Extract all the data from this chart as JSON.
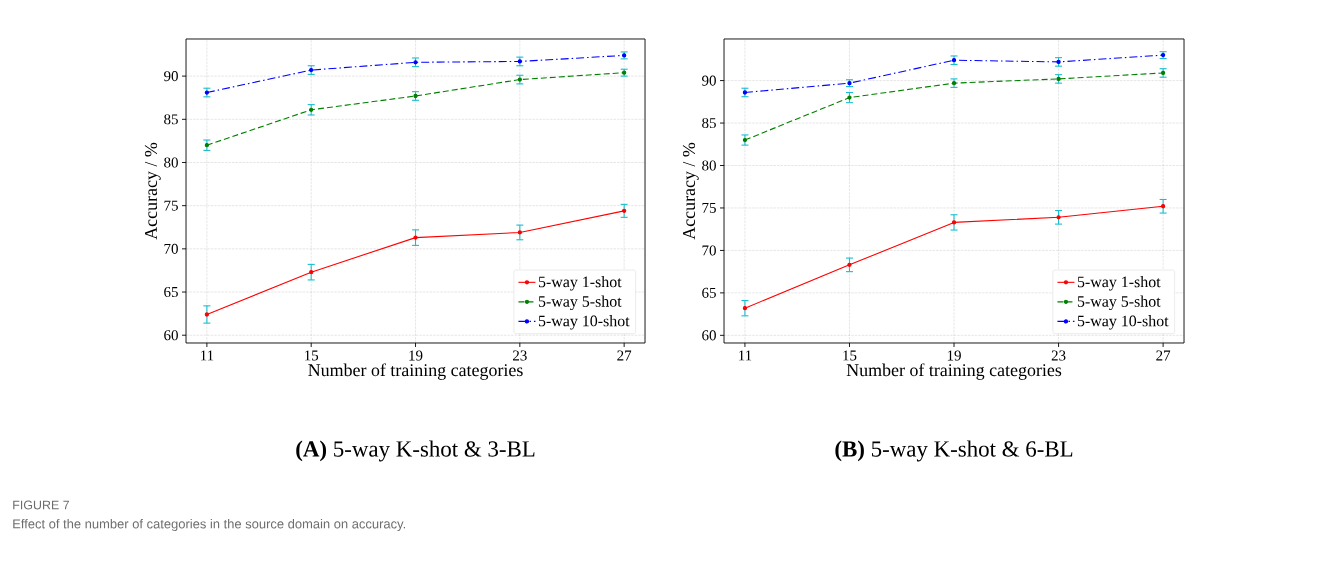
{
  "chart_data": [
    {
      "type": "line",
      "title": "**(A)** 5-way K-shot & 3-BL",
      "xlabel": "Number of training categories",
      "ylabel": "Accuracy / %",
      "x": [
        11,
        15,
        19,
        23,
        27
      ],
      "xlim": [
        10.2,
        27.8
      ],
      "xticks": [
        11,
        15,
        19,
        23,
        27
      ],
      "ylim": [
        59.1,
        94.3
      ],
      "yticks": [
        60,
        65,
        70,
        75,
        80,
        85,
        90
      ],
      "grid": true,
      "legend": "bottom right",
      "marker": "circle",
      "series": [
        {
          "name": "5-way 1-shot",
          "color": "#ff0000",
          "line_style": "solid",
          "values": [
            62.4,
            67.3,
            71.3,
            71.9,
            74.4
          ],
          "errors": [
            1.0,
            0.9,
            0.9,
            0.85,
            0.75
          ]
        },
        {
          "name": "5-way 5-shot",
          "color": "#008000",
          "line_style": "dashed",
          "values": [
            82.0,
            86.1,
            87.7,
            89.6,
            90.4
          ],
          "errors": [
            0.6,
            0.6,
            0.5,
            0.5,
            0.4
          ]
        },
        {
          "name": "5-way 10-shot",
          "color": "#0000ff",
          "line_style": "dashdot",
          "values": [
            88.1,
            90.7,
            91.6,
            91.7,
            92.4
          ],
          "errors": [
            0.5,
            0.5,
            0.5,
            0.5,
            0.4
          ]
        }
      ],
      "annotations": [
        "FIGURE 7",
        "Effect of the number of categories in the source domain on accuracy."
      ]
    },
    {
      "type": "line",
      "title": "**(B)** 5-way K-shot & 6-BL",
      "xlabel": "Number of training categories",
      "ylabel": "Accuracy / %",
      "x": [
        11,
        15,
        19,
        23,
        27
      ],
      "xlim": [
        10.2,
        27.8
      ],
      "xticks": [
        11,
        15,
        19,
        23,
        27
      ],
      "ylim": [
        59.1,
        94.9
      ],
      "yticks": [
        60,
        65,
        70,
        75,
        80,
        85,
        90
      ],
      "grid": true,
      "legend": "bottom right",
      "marker": "circle",
      "series": [
        {
          "name": "5-way 1-shot",
          "color": "#ff0000",
          "line_style": "solid",
          "values": [
            63.2,
            68.3,
            73.3,
            73.9,
            75.2
          ],
          "errors": [
            0.9,
            0.8,
            0.9,
            0.8,
            0.8
          ]
        },
        {
          "name": "5-way 5-shot",
          "color": "#008000",
          "line_style": "dashed",
          "values": [
            83.0,
            88.0,
            89.7,
            90.2,
            90.9
          ],
          "errors": [
            0.6,
            0.6,
            0.5,
            0.5,
            0.5
          ]
        },
        {
          "name": "5-way 10-shot",
          "color": "#0000ff",
          "line_style": "dashdot",
          "values": [
            88.6,
            89.7,
            92.4,
            92.2,
            93.0
          ],
          "errors": [
            0.5,
            0.4,
            0.5,
            0.5,
            0.4
          ]
        }
      ]
    }
  ]
}
